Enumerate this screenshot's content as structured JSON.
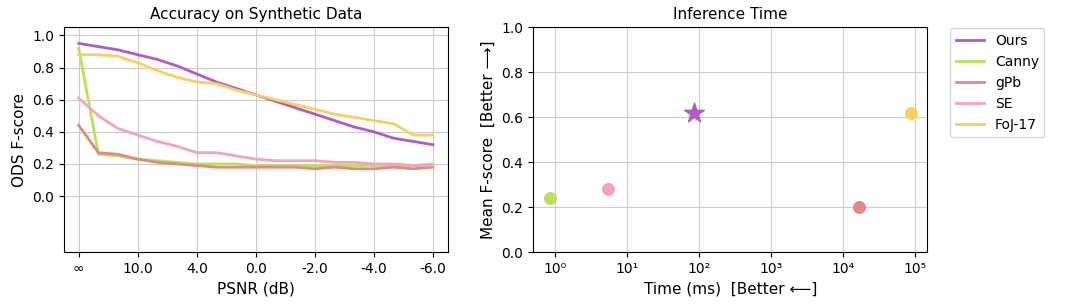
{
  "chart_data": [
    {
      "type": "line",
      "title": "Accuracy on Synthetic Data",
      "x_label": "PSNR (dB)",
      "y_label": "ODS F-score",
      "categories": [
        "∞",
        null,
        null,
        "10.0",
        null,
        null,
        "4.0",
        null,
        null,
        "0.0",
        null,
        null,
        "-2.0",
        null,
        null,
        "-4.0",
        null,
        null,
        "-6.0"
      ],
      "ylim": [
        -0.35,
        1.05
      ],
      "yticks": [
        {
          "value": 0,
          "label": "0.0"
        },
        0.2,
        0.4,
        0.6,
        0.8,
        {
          "value": 1,
          "label": "1.0"
        }
      ],
      "grid": true,
      "legend": "upper left",
      "series": [
        {
          "name": "Ours",
          "color": "#b05cc6",
          "values": [
            0.95,
            0.93,
            0.91,
            0.88,
            0.85,
            0.81,
            0.76,
            0.71,
            0.67,
            0.63,
            0.59,
            0.55,
            0.51,
            0.47,
            0.43,
            0.4,
            0.36,
            0.34,
            0.32
          ]
        },
        {
          "name": "Canny",
          "color": "#bde05a",
          "values": [
            0.92,
            0.26,
            0.25,
            0.23,
            0.22,
            0.21,
            0.2,
            0.2,
            0.2,
            0.19,
            0.19,
            0.19,
            0.19,
            0.19,
            0.19,
            0.19,
            0.19,
            0.19,
            0.2
          ]
        },
        {
          "name": "gPb",
          "color": "#e08a80",
          "values": [
            0.44,
            0.27,
            0.26,
            0.23,
            0.21,
            0.2,
            0.19,
            0.18,
            0.18,
            0.18,
            0.18,
            0.18,
            0.17,
            0.18,
            0.17,
            0.17,
            0.18,
            0.17,
            0.18
          ]
        },
        {
          "name": "SE",
          "color": "#f4a3c0",
          "values": [
            0.61,
            0.5,
            0.42,
            0.38,
            0.34,
            0.31,
            0.27,
            0.27,
            0.25,
            0.23,
            0.22,
            0.22,
            0.22,
            0.21,
            0.21,
            0.2,
            0.2,
            0.19,
            0.19
          ]
        },
        {
          "name": "FoJ-17",
          "color": "#f7d060",
          "values": [
            0.88,
            0.88,
            0.87,
            0.83,
            0.78,
            0.74,
            0.71,
            0.7,
            0.66,
            0.63,
            0.6,
            0.57,
            0.54,
            0.51,
            0.49,
            0.47,
            0.45,
            0.38,
            0.38
          ]
        }
      ]
    },
    {
      "type": "scatter",
      "title": "Inference Time",
      "x_label": "Time (ms)  [Better ⟵]",
      "y_label": "Mean F-score  [Better ⟶]",
      "log": "x",
      "xlim": [
        0.5,
        150000
      ],
      "xticks": [
        {
          "value": 1,
          "label": "10⁰"
        },
        {
          "value": 10,
          "label": "10¹"
        },
        {
          "value": 100,
          "label": "10²"
        },
        {
          "value": 1000,
          "label": "10³"
        },
        {
          "value": 10000,
          "label": "10⁴"
        },
        {
          "value": 100000,
          "label": "10⁵"
        }
      ],
      "ylim": [
        0,
        1
      ],
      "yticks": [
        {
          "value": 0,
          "label": "0.0"
        },
        0.2,
        0.4,
        0.6,
        0.8,
        {
          "value": 1,
          "label": "1.0"
        }
      ],
      "grid": true,
      "points": [
        {
          "x": 0.85,
          "y": 0.24,
          "color": "#bde05a",
          "marker": "o"
        },
        {
          "x": 5.5,
          "y": 0.28,
          "color": "#f4a3c0",
          "marker": "o"
        },
        {
          "x": 85,
          "y": 0.62,
          "color": "#b05cc6",
          "marker": "*"
        },
        {
          "x": 17000,
          "y": 0.2,
          "color": "#e08a80",
          "marker": "o"
        },
        {
          "x": 90000,
          "y": 0.62,
          "color": "#f7d060",
          "marker": "o"
        }
      ]
    }
  ]
}
